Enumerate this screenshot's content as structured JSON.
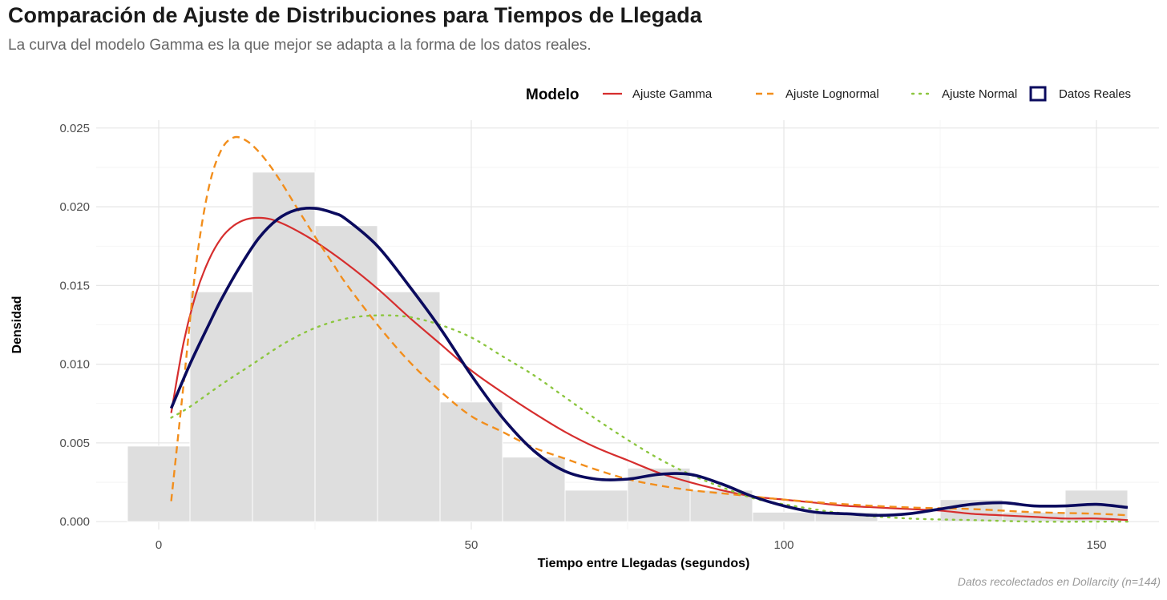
{
  "title": "Comparación de Ajuste de Distribuciones para Tiempos de Llegada",
  "subtitle": "La curva del modelo Gamma es la que mejor se adapta a la forma de los datos reales.",
  "caption": "Datos recolectados en Dollarcity (n=144)",
  "chart_data": {
    "type": "histogram",
    "xlabel": "Tiempo entre Llegadas (segundos)",
    "ylabel": "Densidad",
    "xlim": [
      -10,
      160
    ],
    "ylim": [
      -0.0005,
      0.0255
    ],
    "x_ticks": [
      0,
      50,
      100,
      150
    ],
    "y_ticks": [
      0.0,
      0.005,
      0.01,
      0.015,
      0.02,
      0.025
    ],
    "x_tick_labels": [
      "0",
      "50",
      "100",
      "150"
    ],
    "y_tick_labels": [
      "0.000",
      "0.005",
      "0.010",
      "0.015",
      "0.020",
      "0.025"
    ],
    "grid": true,
    "legend": {
      "title": "Modelo",
      "position": "top-right",
      "entries": [
        {
          "label": "Ajuste Gamma",
          "color": "#d62e2e",
          "style": "solid"
        },
        {
          "label": "Ajuste Lognormal",
          "color": "#f28e1c",
          "style": "dashed"
        },
        {
          "label": "Ajuste Normal",
          "color": "#8cc63f",
          "style": "dotted"
        },
        {
          "label": "Datos Reales",
          "color": "#0b0b5e",
          "style": "box"
        }
      ]
    },
    "histogram": {
      "color": "#dedede",
      "bins": [
        {
          "x0": -5,
          "x1": 5,
          "density": 0.0048
        },
        {
          "x0": 5,
          "x1": 15,
          "density": 0.0146
        },
        {
          "x0": 15,
          "x1": 25,
          "density": 0.0222
        },
        {
          "x0": 25,
          "x1": 35,
          "density": 0.0188
        },
        {
          "x0": 35,
          "x1": 45,
          "density": 0.0146
        },
        {
          "x0": 45,
          "x1": 55,
          "density": 0.0076
        },
        {
          "x0": 55,
          "x1": 65,
          "density": 0.0041
        },
        {
          "x0": 65,
          "x1": 75,
          "density": 0.002
        },
        {
          "x0": 75,
          "x1": 85,
          "density": 0.0034
        },
        {
          "x0": 85,
          "x1": 95,
          "density": 0.002
        },
        {
          "x0": 95,
          "x1": 105,
          "density": 0.0006
        },
        {
          "x0": 105,
          "x1": 115,
          "density": 0.0006
        },
        {
          "x0": 115,
          "x1": 125,
          "density": 0.0
        },
        {
          "x0": 125,
          "x1": 135,
          "density": 0.0014
        },
        {
          "x0": 135,
          "x1": 145,
          "density": 0.0006
        },
        {
          "x0": 145,
          "x1": 155,
          "density": 0.002
        }
      ]
    },
    "series": [
      {
        "name": "Ajuste Gamma",
        "color": "#d62e2e",
        "style": "solid",
        "x": [
          2,
          4,
          6,
          8,
          10,
          12,
          14,
          16,
          18,
          20,
          22,
          25,
          30,
          35,
          40,
          45,
          50,
          55,
          60,
          65,
          70,
          75,
          80,
          85,
          90,
          95,
          100,
          105,
          110,
          115,
          120,
          125,
          130,
          135,
          140,
          145,
          150,
          155
        ],
        "y": [
          0.0069,
          0.0114,
          0.0145,
          0.0166,
          0.018,
          0.0188,
          0.0192,
          0.0193,
          0.0192,
          0.0189,
          0.0185,
          0.0178,
          0.0164,
          0.0148,
          0.013,
          0.0113,
          0.0096,
          0.0082,
          0.0069,
          0.0057,
          0.0047,
          0.0039,
          0.0031,
          0.0025,
          0.002,
          0.0016,
          0.0014,
          0.0012,
          0.001,
          0.0009,
          0.0008,
          0.0007,
          0.0005,
          0.0004,
          0.0003,
          0.0002,
          0.0002,
          0.0001
        ]
      },
      {
        "name": "Ajuste Lognormal",
        "color": "#f28e1c",
        "style": "dashed",
        "x": [
          2,
          4,
          6,
          8,
          10,
          12,
          14,
          16,
          18,
          20,
          22,
          25,
          28,
          30,
          35,
          40,
          45,
          50,
          55,
          60,
          65,
          70,
          75,
          80,
          85,
          90,
          95,
          100,
          110,
          120,
          130,
          140,
          150,
          155
        ],
        "y": [
          0.0013,
          0.0088,
          0.0164,
          0.0212,
          0.0236,
          0.0244,
          0.0242,
          0.0235,
          0.0225,
          0.0213,
          0.02,
          0.0181,
          0.0163,
          0.0151,
          0.0125,
          0.0102,
          0.0083,
          0.0067,
          0.0057,
          0.0047,
          0.004,
          0.0033,
          0.0027,
          0.0023,
          0.002,
          0.0018,
          0.0016,
          0.0014,
          0.0011,
          0.0009,
          0.0008,
          0.0006,
          0.0005,
          0.0004
        ]
      },
      {
        "name": "Ajuste Normal",
        "color": "#8cc63f",
        "style": "dotted",
        "x": [
          2,
          5,
          10,
          15,
          20,
          25,
          30,
          35,
          40,
          45,
          50,
          55,
          60,
          65,
          70,
          75,
          80,
          85,
          90,
          95,
          100,
          110,
          120,
          130,
          140,
          150,
          155
        ],
        "y": [
          0.0066,
          0.0073,
          0.0087,
          0.01,
          0.0113,
          0.0123,
          0.0129,
          0.0131,
          0.013,
          0.0125,
          0.0117,
          0.0105,
          0.0093,
          0.0079,
          0.0065,
          0.0052,
          0.004,
          0.003,
          0.0022,
          0.0015,
          0.0011,
          0.0005,
          0.0002,
          0.0001,
          0.0,
          0.0,
          0.0
        ]
      },
      {
        "name": "Datos Reales",
        "color": "#0b0b5e",
        "style": "solid-thick",
        "x": [
          2,
          5,
          8,
          10,
          13,
          16,
          19,
          22,
          25,
          28,
          30,
          35,
          40,
          45,
          50,
          55,
          60,
          65,
          70,
          75,
          80,
          85,
          90,
          95,
          100,
          105,
          110,
          115,
          120,
          125,
          130,
          135,
          140,
          145,
          150,
          155
        ],
        "y": [
          0.0072,
          0.01,
          0.0125,
          0.0141,
          0.0162,
          0.018,
          0.0192,
          0.0198,
          0.0199,
          0.0196,
          0.0192,
          0.0175,
          0.015,
          0.0123,
          0.0093,
          0.0066,
          0.0045,
          0.0032,
          0.0027,
          0.0027,
          0.003,
          0.003,
          0.0024,
          0.0016,
          0.001,
          0.0006,
          0.0005,
          0.0004,
          0.0005,
          0.0008,
          0.0011,
          0.0012,
          0.001,
          0.001,
          0.0011,
          0.0009
        ]
      }
    ]
  }
}
